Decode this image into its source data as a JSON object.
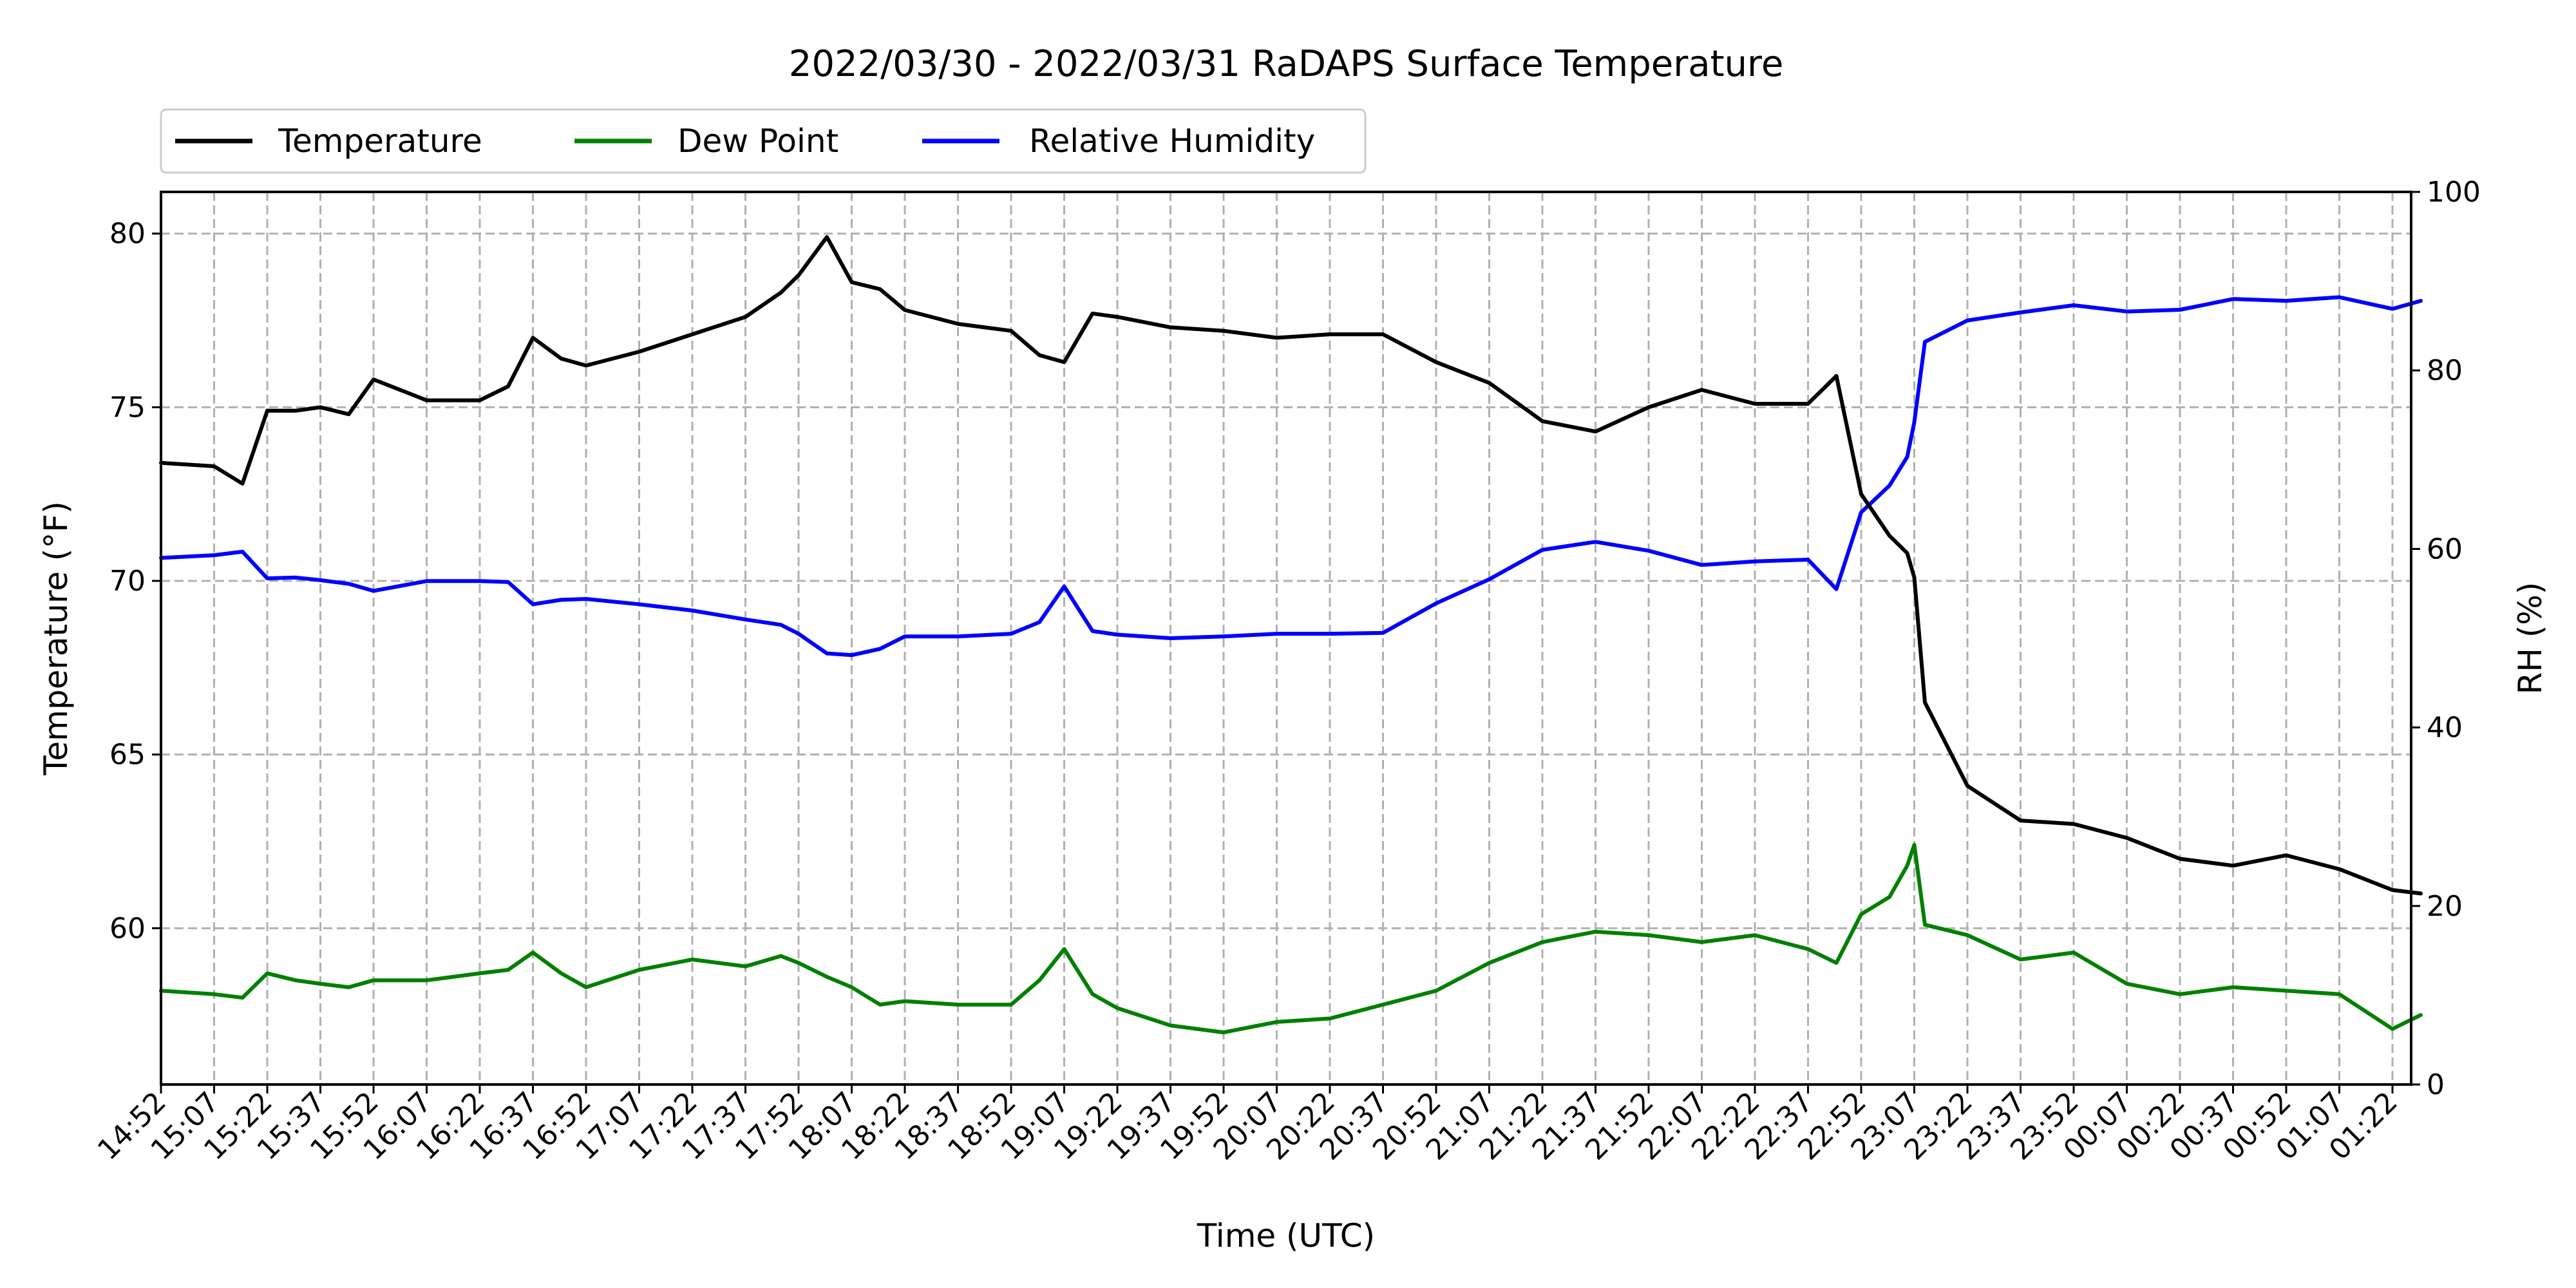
{
  "chart_data": {
    "type": "line",
    "title": "2022/03/30 - 2022/03/31 RaDAPS Surface Temperature",
    "xlabel": "Time (UTC)",
    "ylabel": "Temperature (°F)",
    "y2label": "RH (%)",
    "ylim": [
      55.5,
      81.2
    ],
    "y2lim": [
      0,
      100
    ],
    "yticks": [
      60,
      65,
      70,
      75,
      80
    ],
    "y2ticks": [
      0,
      20,
      40,
      60,
      80,
      100
    ],
    "grid": true,
    "legend_position": "top-left",
    "x_tick_labels": [
      "14:52",
      "15:07",
      "15:22",
      "15:37",
      "15:52",
      "16:07",
      "16:22",
      "16:37",
      "16:52",
      "17:07",
      "17:22",
      "17:37",
      "17:52",
      "18:07",
      "18:22",
      "18:37",
      "18:52",
      "19:07",
      "19:22",
      "19:37",
      "19:52",
      "20:07",
      "20:22",
      "20:37",
      "20:52",
      "21:07",
      "21:22",
      "21:37",
      "21:52",
      "22:07",
      "22:22",
      "22:37",
      "22:52",
      "23:07",
      "23:22",
      "23:37",
      "23:52",
      "00:07",
      "00:22",
      "00:37",
      "00:52",
      "01:07",
      "01:22"
    ],
    "x": [
      "14:52",
      "15:07",
      "15:15",
      "15:22",
      "15:30",
      "15:37",
      "15:45",
      "15:52",
      "16:07",
      "16:22",
      "16:30",
      "16:37",
      "16:45",
      "16:52",
      "17:07",
      "17:22",
      "17:37",
      "17:47",
      "17:52",
      "18:00",
      "18:07",
      "18:15",
      "18:22",
      "18:37",
      "18:52",
      "19:00",
      "19:07",
      "19:15",
      "19:22",
      "19:37",
      "19:52",
      "20:07",
      "20:22",
      "20:37",
      "20:52",
      "21:07",
      "21:22",
      "21:37",
      "21:52",
      "22:07",
      "22:22",
      "22:37",
      "22:45",
      "22:52",
      "23:00",
      "23:05",
      "23:07",
      "23:10",
      "23:22",
      "23:37",
      "23:52",
      "00:07",
      "00:22",
      "00:37",
      "00:52",
      "01:07",
      "01:22",
      "01:30"
    ],
    "series": [
      {
        "name": "Temperature",
        "axis": "left",
        "color": "#000000",
        "values": [
          73.4,
          73.3,
          72.8,
          74.9,
          74.9,
          75.0,
          74.8,
          75.8,
          75.2,
          75.2,
          75.6,
          77.0,
          76.4,
          76.2,
          76.6,
          77.1,
          77.6,
          78.3,
          78.8,
          79.9,
          78.6,
          78.4,
          77.8,
          77.4,
          77.2,
          76.5,
          76.3,
          77.7,
          77.6,
          77.3,
          77.2,
          77.0,
          77.1,
          77.1,
          76.3,
          75.7,
          74.6,
          74.3,
          75.0,
          75.5,
          75.1,
          75.1,
          75.9,
          72.5,
          71.3,
          70.8,
          70.1,
          66.5,
          64.1,
          63.1,
          63.0,
          62.6,
          62.0,
          61.8,
          62.1,
          61.7,
          61.1,
          61.0
        ]
      },
      {
        "name": "Dew Point",
        "axis": "left",
        "color": "#008000",
        "values": [
          58.2,
          58.1,
          58.0,
          58.7,
          58.5,
          58.4,
          58.3,
          58.5,
          58.5,
          58.7,
          58.8,
          59.3,
          58.7,
          58.3,
          58.8,
          59.1,
          58.9,
          59.2,
          59.0,
          58.6,
          58.3,
          57.8,
          57.9,
          57.8,
          57.8,
          58.5,
          59.4,
          58.1,
          57.7,
          57.2,
          57.0,
          57.3,
          57.4,
          57.8,
          58.2,
          59.0,
          59.6,
          59.9,
          59.8,
          59.6,
          59.8,
          59.4,
          59.0,
          60.4,
          60.9,
          61.8,
          62.4,
          60.1,
          59.8,
          59.1,
          59.3,
          58.4,
          58.1,
          58.3,
          58.2,
          58.1,
          57.1,
          57.5
        ]
      },
      {
        "name": "Relative Humidity",
        "axis": "right",
        "color": "#0000ff",
        "values": [
          59.0,
          59.3,
          59.7,
          56.7,
          56.8,
          56.5,
          56.1,
          55.3,
          56.4,
          56.4,
          56.3,
          53.8,
          54.3,
          54.4,
          53.8,
          53.1,
          52.1,
          51.5,
          50.5,
          48.3,
          48.1,
          48.8,
          50.2,
          50.2,
          50.5,
          51.8,
          55.8,
          50.8,
          50.4,
          50.0,
          50.2,
          50.5,
          50.5,
          50.6,
          53.9,
          56.6,
          59.9,
          60.8,
          59.8,
          58.2,
          58.6,
          58.8,
          55.5,
          64.1,
          67.1,
          70.3,
          74.2,
          83.2,
          85.6,
          86.5,
          87.3,
          86.6,
          86.8,
          88.0,
          87.8,
          88.2,
          86.9,
          87.8
        ]
      }
    ]
  }
}
